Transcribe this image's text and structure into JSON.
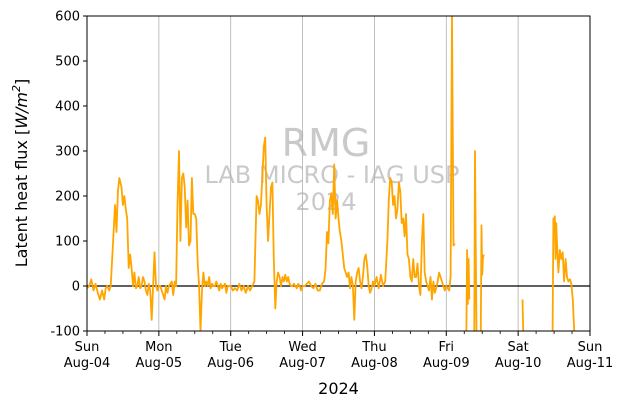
{
  "chart_data": {
    "type": "line",
    "ylabel_text": "Latent heat flux [",
    "ylabel_unit_base": "W/m",
    "ylabel_unit_exp": "2",
    "ylabel_close": "]",
    "xlabel": "2024",
    "ylim": [
      -100,
      600
    ],
    "yticks": [
      -100,
      0,
      100,
      200,
      300,
      400,
      500,
      600
    ],
    "xlim_days": [
      0,
      7
    ],
    "xticks": [
      {
        "day": 0,
        "weekday": "Sun",
        "date": "Aug-04"
      },
      {
        "day": 1,
        "weekday": "Mon",
        "date": "Aug-05"
      },
      {
        "day": 2,
        "weekday": "Tue",
        "date": "Aug-06"
      },
      {
        "day": 3,
        "weekday": "Wed",
        "date": "Aug-07"
      },
      {
        "day": 4,
        "weekday": "Thu",
        "date": "Aug-08"
      },
      {
        "day": 5,
        "weekday": "Fri",
        "date": "Aug-09"
      },
      {
        "day": 6,
        "weekday": "Sat",
        "date": "Aug-10"
      },
      {
        "day": 7,
        "weekday": "Sun",
        "date": "Aug-11"
      }
    ],
    "grid": "vertical-at-day-ticks",
    "zero_line": true,
    "series_color": "#ffa500",
    "watermark": [
      "RMG",
      "LAB MICRO - IAG USP",
      "2024"
    ],
    "series": [
      {
        "segments": [
          [
            [
              0.0,
              -5
            ],
            [
              0.03,
              0
            ],
            [
              0.06,
              15
            ],
            [
              0.09,
              -10
            ],
            [
              0.12,
              5
            ],
            [
              0.15,
              -15
            ],
            [
              0.18,
              -30
            ],
            [
              0.21,
              -10
            ],
            [
              0.24,
              -30
            ],
            [
              0.26,
              -5
            ],
            [
              0.28,
              0
            ],
            [
              0.31,
              -10
            ],
            [
              0.33,
              0
            ],
            [
              0.36,
              90
            ],
            [
              0.39,
              180
            ],
            [
              0.41,
              120
            ],
            [
              0.43,
              210
            ],
            [
              0.45,
              240
            ],
            [
              0.48,
              220
            ],
            [
              0.5,
              180
            ],
            [
              0.52,
              200
            ],
            [
              0.54,
              170
            ],
            [
              0.56,
              150
            ],
            [
              0.58,
              40
            ],
            [
              0.6,
              70
            ],
            [
              0.62,
              40
            ],
            [
              0.64,
              0
            ],
            [
              0.66,
              30
            ],
            [
              0.68,
              -5
            ],
            [
              0.7,
              0
            ],
            [
              0.72,
              20
            ],
            [
              0.74,
              -5
            ],
            [
              0.76,
              0
            ],
            [
              0.78,
              20
            ],
            [
              0.8,
              10
            ],
            [
              0.82,
              -10
            ],
            [
              0.84,
              -20
            ],
            [
              0.86,
              5
            ],
            [
              0.88,
              -10
            ],
            [
              0.9,
              -75
            ],
            [
              0.92,
              0
            ],
            [
              0.94,
              75
            ],
            [
              0.96,
              0
            ],
            [
              0.98,
              -10
            ],
            [
              1.0,
              0
            ],
            [
              1.02,
              0
            ],
            [
              1.04,
              -10
            ],
            [
              1.06,
              -20
            ],
            [
              1.08,
              -30
            ],
            [
              1.1,
              0
            ],
            [
              1.12,
              -15
            ],
            [
              1.14,
              0
            ],
            [
              1.16,
              5
            ],
            [
              1.18,
              10
            ],
            [
              1.2,
              -20
            ],
            [
              1.22,
              10
            ],
            [
              1.24,
              0
            ],
            [
              1.26,
              180
            ],
            [
              1.28,
              300
            ],
            [
              1.3,
              100
            ],
            [
              1.32,
              240
            ],
            [
              1.34,
              250
            ],
            [
              1.36,
              220
            ],
            [
              1.38,
              130
            ],
            [
              1.4,
              190
            ],
            [
              1.42,
              90
            ],
            [
              1.44,
              100
            ],
            [
              1.46,
              240
            ],
            [
              1.48,
              160
            ],
            [
              1.5,
              160
            ],
            [
              1.52,
              150
            ],
            [
              1.54,
              50
            ],
            [
              1.56,
              0
            ],
            [
              1.58,
              -100
            ],
            [
              1.6,
              -10
            ],
            [
              1.62,
              30
            ],
            [
              1.64,
              0
            ],
            [
              1.66,
              10
            ],
            [
              1.68,
              0
            ],
            [
              1.7,
              20
            ],
            [
              1.72,
              -5
            ],
            [
              1.74,
              5
            ],
            [
              1.76,
              0
            ],
            [
              1.78,
              0
            ],
            [
              1.8,
              10
            ],
            [
              1.82,
              0
            ],
            [
              1.84,
              -10
            ],
            [
              1.86,
              5
            ],
            [
              1.88,
              -5
            ],
            [
              1.9,
              0
            ],
            [
              1.92,
              5
            ],
            [
              1.94,
              -15
            ],
            [
              1.96,
              0
            ],
            [
              1.98,
              0
            ],
            [
              2.0,
              0
            ],
            [
              2.03,
              -10
            ],
            [
              2.06,
              -5
            ],
            [
              2.09,
              -10
            ],
            [
              2.12,
              5
            ],
            [
              2.15,
              -10
            ],
            [
              2.18,
              0
            ],
            [
              2.21,
              -15
            ],
            [
              2.24,
              0
            ],
            [
              2.27,
              -10
            ],
            [
              2.3,
              0
            ],
            [
              2.33,
              10
            ],
            [
              2.36,
              200
            ],
            [
              2.38,
              190
            ],
            [
              2.4,
              160
            ],
            [
              2.42,
              180
            ],
            [
              2.44,
              240
            ],
            [
              2.46,
              310
            ],
            [
              2.48,
              330
            ],
            [
              2.5,
              180
            ],
            [
              2.52,
              100
            ],
            [
              2.54,
              160
            ],
            [
              2.56,
              220
            ],
            [
              2.58,
              230
            ],
            [
              2.6,
              60
            ],
            [
              2.62,
              -50
            ],
            [
              2.64,
              10
            ],
            [
              2.66,
              30
            ],
            [
              2.68,
              20
            ],
            [
              2.7,
              0
            ],
            [
              2.72,
              20
            ],
            [
              2.74,
              10
            ],
            [
              2.76,
              25
            ],
            [
              2.78,
              10
            ],
            [
              2.8,
              20
            ],
            [
              2.82,
              5
            ],
            [
              2.84,
              0
            ],
            [
              2.86,
              0
            ],
            [
              2.88,
              5
            ],
            [
              2.9,
              0
            ],
            [
              2.92,
              -5
            ],
            [
              2.94,
              5
            ],
            [
              2.96,
              0
            ],
            [
              2.98,
              -10
            ],
            [
              3.0,
              0
            ],
            [
              3.03,
              0
            ],
            [
              3.06,
              5
            ],
            [
              3.09,
              10
            ],
            [
              3.12,
              0
            ],
            [
              3.15,
              -5
            ],
            [
              3.18,
              5
            ],
            [
              3.21,
              -10
            ],
            [
              3.24,
              -10
            ],
            [
              3.27,
              5
            ],
            [
              3.3,
              10
            ],
            [
              3.32,
              40
            ],
            [
              3.34,
              120
            ],
            [
              3.36,
              95
            ],
            [
              3.38,
              190
            ],
            [
              3.4,
              205
            ],
            [
              3.42,
              160
            ],
            [
              3.44,
              270
            ],
            [
              3.46,
              150
            ],
            [
              3.48,
              190
            ],
            [
              3.5,
              150
            ],
            [
              3.52,
              120
            ],
            [
              3.54,
              100
            ],
            [
              3.56,
              70
            ],
            [
              3.58,
              40
            ],
            [
              3.6,
              30
            ],
            [
              3.62,
              20
            ],
            [
              3.64,
              30
            ],
            [
              3.66,
              -5
            ],
            [
              3.68,
              20
            ],
            [
              3.7,
              0
            ],
            [
              3.72,
              -75
            ],
            [
              3.74,
              10
            ],
            [
              3.76,
              30
            ],
            [
              3.78,
              40
            ],
            [
              3.8,
              10
            ],
            [
              3.82,
              -5
            ],
            [
              3.84,
              20
            ],
            [
              3.86,
              60
            ],
            [
              3.88,
              70
            ],
            [
              3.9,
              45
            ],
            [
              3.92,
              0
            ],
            [
              3.94,
              -15
            ],
            [
              3.96,
              -5
            ],
            [
              3.98,
              10
            ],
            [
              4.0,
              0
            ],
            [
              4.03,
              20
            ],
            [
              4.06,
              -5
            ],
            [
              4.09,
              25
            ],
            [
              4.12,
              0
            ],
            [
              4.15,
              10
            ],
            [
              4.18,
              100
            ],
            [
              4.2,
              190
            ],
            [
              4.22,
              240
            ],
            [
              4.24,
              230
            ],
            [
              4.26,
              180
            ],
            [
              4.28,
              200
            ],
            [
              4.3,
              150
            ],
            [
              4.32,
              170
            ],
            [
              4.34,
              230
            ],
            [
              4.36,
              210
            ],
            [
              4.38,
              140
            ],
            [
              4.4,
              150
            ],
            [
              4.42,
              110
            ],
            [
              4.44,
              160
            ],
            [
              4.46,
              70
            ],
            [
              4.48,
              60
            ],
            [
              4.5,
              20
            ],
            [
              4.52,
              10
            ],
            [
              4.54,
              60
            ],
            [
              4.56,
              20
            ],
            [
              4.58,
              20
            ],
            [
              4.6,
              50
            ],
            [
              4.62,
              0
            ],
            [
              4.64,
              -20
            ],
            [
              4.66,
              100
            ],
            [
              4.68,
              160
            ],
            [
              4.7,
              30
            ],
            [
              4.72,
              10
            ],
            [
              4.74,
              0
            ],
            [
              4.76,
              -10
            ],
            [
              4.78,
              20
            ],
            [
              4.8,
              -30
            ],
            [
              4.82,
              10
            ],
            [
              4.84,
              -15
            ],
            [
              4.86,
              -5
            ],
            [
              4.88,
              10
            ],
            [
              4.9,
              30
            ],
            [
              4.92,
              20
            ],
            [
              4.94,
              10
            ],
            [
              4.96,
              0
            ],
            [
              4.98,
              -10
            ],
            [
              5.0,
              0
            ],
            [
              5.02,
              -5
            ],
            [
              5.04,
              -10
            ],
            [
              5.06,
              20
            ],
            [
              5.08,
              600
            ],
            [
              5.1,
              90
            ],
            [
              5.12,
              95
            ]
          ],
          [
            [
              5.28,
              -100
            ],
            [
              5.29,
              80
            ],
            [
              5.3,
              -40
            ],
            [
              5.31,
              60
            ],
            [
              5.32,
              -30
            ]
          ],
          [
            [
              5.39,
              -100
            ],
            [
              5.4,
              300
            ],
            [
              5.41,
              100
            ],
            [
              5.42,
              -100
            ]
          ],
          [
            [
              5.48,
              -100
            ],
            [
              5.49,
              135
            ],
            [
              5.5,
              25
            ],
            [
              5.51,
              60
            ],
            [
              5.52,
              70
            ]
          ],
          [
            [
              6.06,
              -30
            ],
            [
              6.07,
              -100
            ]
          ],
          [
            [
              6.48,
              -100
            ],
            [
              6.49,
              150
            ],
            [
              6.5,
              120
            ],
            [
              6.51,
              155
            ],
            [
              6.52,
              60
            ],
            [
              6.53,
              140
            ],
            [
              6.54,
              100
            ],
            [
              6.56,
              30
            ],
            [
              6.58,
              80
            ],
            [
              6.6,
              60
            ],
            [
              6.62,
              75
            ],
            [
              6.64,
              10
            ],
            [
              6.66,
              60
            ],
            [
              6.68,
              20
            ],
            [
              6.7,
              10
            ],
            [
              6.72,
              15
            ],
            [
              6.74,
              5
            ],
            [
              6.76,
              -30
            ],
            [
              6.78,
              -100
            ]
          ]
        ]
      }
    ]
  }
}
